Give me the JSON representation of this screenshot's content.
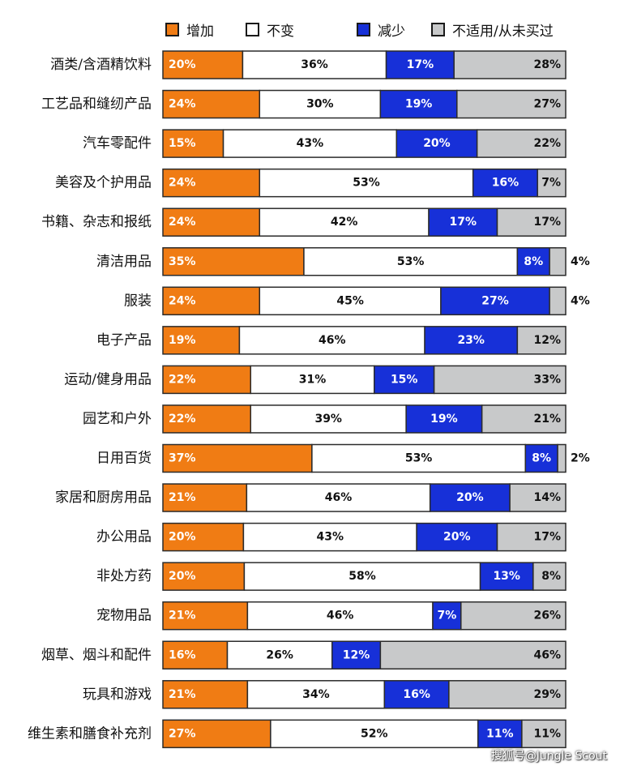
{
  "chart_data": {
    "type": "bar",
    "orientation": "horizontal",
    "stacked": true,
    "legend_position": "top",
    "xlim": [
      0,
      100
    ],
    "categories": [
      "酒类/含酒精饮料",
      "工艺品和缝纫产品",
      "汽车零配件",
      "美容及个护用品",
      "书籍、杂志和报纸",
      "清洁用品",
      "服装",
      "电子产品",
      "运动/健身用品",
      "园艺和户外",
      "日用百货",
      "家居和厨房用品",
      "办公用品",
      "非处方药",
      "宠物用品",
      "烟草、烟斗和配件",
      "玩具和游戏",
      "维生素和膳食补充剂"
    ],
    "series": [
      {
        "name": "增加",
        "color": "#f07c14",
        "text_color": "#ffffff",
        "values": [
          20,
          24,
          15,
          24,
          24,
          35,
          24,
          19,
          22,
          22,
          37,
          21,
          20,
          20,
          21,
          16,
          21,
          27
        ]
      },
      {
        "name": "不变",
        "color": "#ffffff",
        "text_color": "#111111",
        "values": [
          36,
          30,
          43,
          53,
          42,
          53,
          45,
          46,
          31,
          39,
          53,
          46,
          43,
          58,
          46,
          26,
          34,
          52
        ]
      },
      {
        "name": "减少",
        "color": "#1730d8",
        "text_color": "#ffffff",
        "values": [
          17,
          19,
          20,
          16,
          17,
          8,
          27,
          23,
          15,
          19,
          8,
          20,
          20,
          13,
          7,
          12,
          16,
          11
        ]
      },
      {
        "name": "不适用/从未买过",
        "color": "#c8c9ca",
        "text_color": "#111111",
        "values": [
          28,
          27,
          22,
          7,
          17,
          4,
          4,
          12,
          33,
          21,
          2,
          14,
          17,
          8,
          26,
          46,
          29,
          11
        ]
      }
    ]
  },
  "watermark": "搜狐号@Jungle Scout"
}
